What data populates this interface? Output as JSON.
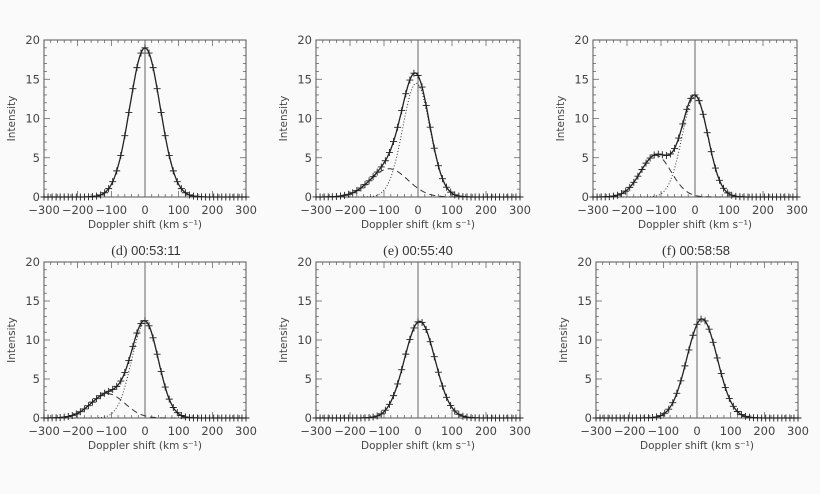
{
  "panels_meta": {
    "d": {
      "letter": "(d)",
      "time": "00:53:11"
    },
    "e": {
      "letter": "(e)",
      "time": "00:55:40"
    },
    "f": {
      "letter": "(f)",
      "time": "00:58:58"
    }
  },
  "chart_data": [
    {
      "type": "line",
      "panel": "a",
      "title": "",
      "xlabel": "Doppler shift  (km s⁻¹)",
      "ylabel": "Intensity",
      "xlim": [
        -300,
        300
      ],
      "ylim": [
        0,
        20
      ],
      "xticks": [
        -300,
        -200,
        -100,
        0,
        100,
        200,
        300
      ],
      "yticks": [
        0,
        5,
        10,
        15,
        20
      ],
      "series": [
        {
          "name": "observed+fit",
          "style": "solid",
          "amp": 19,
          "center": 0,
          "width": 45
        }
      ],
      "components": []
    },
    {
      "type": "line",
      "panel": "b",
      "title": "",
      "xlabel": "Doppler shift  (km s⁻¹)",
      "ylabel": "Intensity",
      "xlim": [
        -300,
        300
      ],
      "ylim": [
        0,
        20
      ],
      "xticks": [
        -300,
        -200,
        -100,
        0,
        100,
        200,
        300
      ],
      "yticks": [
        0,
        5,
        10,
        15,
        20
      ],
      "series": [
        {
          "name": "observed+fit",
          "style": "solid",
          "amp": 15.3,
          "center": -8
        }
      ],
      "components": [
        {
          "name": "main",
          "style": "dotted",
          "amp": 14.5,
          "center": -5,
          "width": 40
        },
        {
          "name": "secondary",
          "style": "dashed",
          "amp": 3.6,
          "center": -85,
          "width": 55
        }
      ]
    },
    {
      "type": "line",
      "panel": "c",
      "title": "",
      "xlabel": "Doppler shift  (km s⁻¹)",
      "ylabel": "Intensity",
      "xlim": [
        -300,
        300
      ],
      "ylim": [
        0,
        20
      ],
      "xticks": [
        -300,
        -200,
        -100,
        0,
        100,
        200,
        300
      ],
      "yticks": [
        0,
        5,
        10,
        15,
        20
      ],
      "series": [
        {
          "name": "observed+fit",
          "style": "solid",
          "amp": 13.1,
          "center": -2
        }
      ],
      "components": [
        {
          "name": "main",
          "style": "dotted",
          "amp": 12.8,
          "center": 0,
          "width": 38
        },
        {
          "name": "secondary",
          "style": "dashed",
          "amp": 5.3,
          "center": -115,
          "width": 45
        }
      ]
    },
    {
      "type": "line",
      "panel": "d",
      "title": "(d) 00:53:11",
      "xlabel": "Doppler shift  (km s⁻¹)",
      "ylabel": "Intensity",
      "xlim": [
        -300,
        300
      ],
      "ylim": [
        0,
        20
      ],
      "xticks": [
        -300,
        -200,
        -100,
        0,
        100,
        200,
        300
      ],
      "yticks": [
        0,
        5,
        10,
        15,
        20
      ],
      "series": [
        {
          "name": "observed+fit",
          "style": "solid",
          "amp": 12.6,
          "center": 0
        }
      ],
      "components": [
        {
          "name": "main",
          "style": "dotted",
          "amp": 12.2,
          "center": 0,
          "width": 40
        },
        {
          "name": "secondary",
          "style": "dashed",
          "amp": 3.1,
          "center": -110,
          "width": 50
        }
      ]
    },
    {
      "type": "line",
      "panel": "e",
      "title": "(e) 00:55:40",
      "xlabel": "Doppler shift  (km s⁻¹)",
      "ylabel": "Intensity",
      "xlim": [
        -300,
        300
      ],
      "ylim": [
        0,
        20
      ],
      "xticks": [
        -300,
        -200,
        -100,
        0,
        100,
        200,
        300
      ],
      "yticks": [
        0,
        5,
        10,
        15,
        20
      ],
      "series": [
        {
          "name": "observed+fit",
          "style": "solid",
          "amp": 12.4,
          "center": 5,
          "width": 45
        }
      ],
      "components": []
    },
    {
      "type": "line",
      "panel": "f",
      "title": "(f) 00:58:58",
      "xlabel": "Doppler shift  (km s⁻¹)",
      "ylabel": "Intensity",
      "xlim": [
        -300,
        300
      ],
      "ylim": [
        0,
        20
      ],
      "xticks": [
        -300,
        -200,
        -100,
        0,
        100,
        200,
        300
      ],
      "yticks": [
        0,
        5,
        10,
        15,
        20
      ],
      "series": [
        {
          "name": "observed+fit",
          "style": "solid",
          "amp": 12.7,
          "center": 15,
          "width": 45
        }
      ],
      "components": []
    }
  ]
}
